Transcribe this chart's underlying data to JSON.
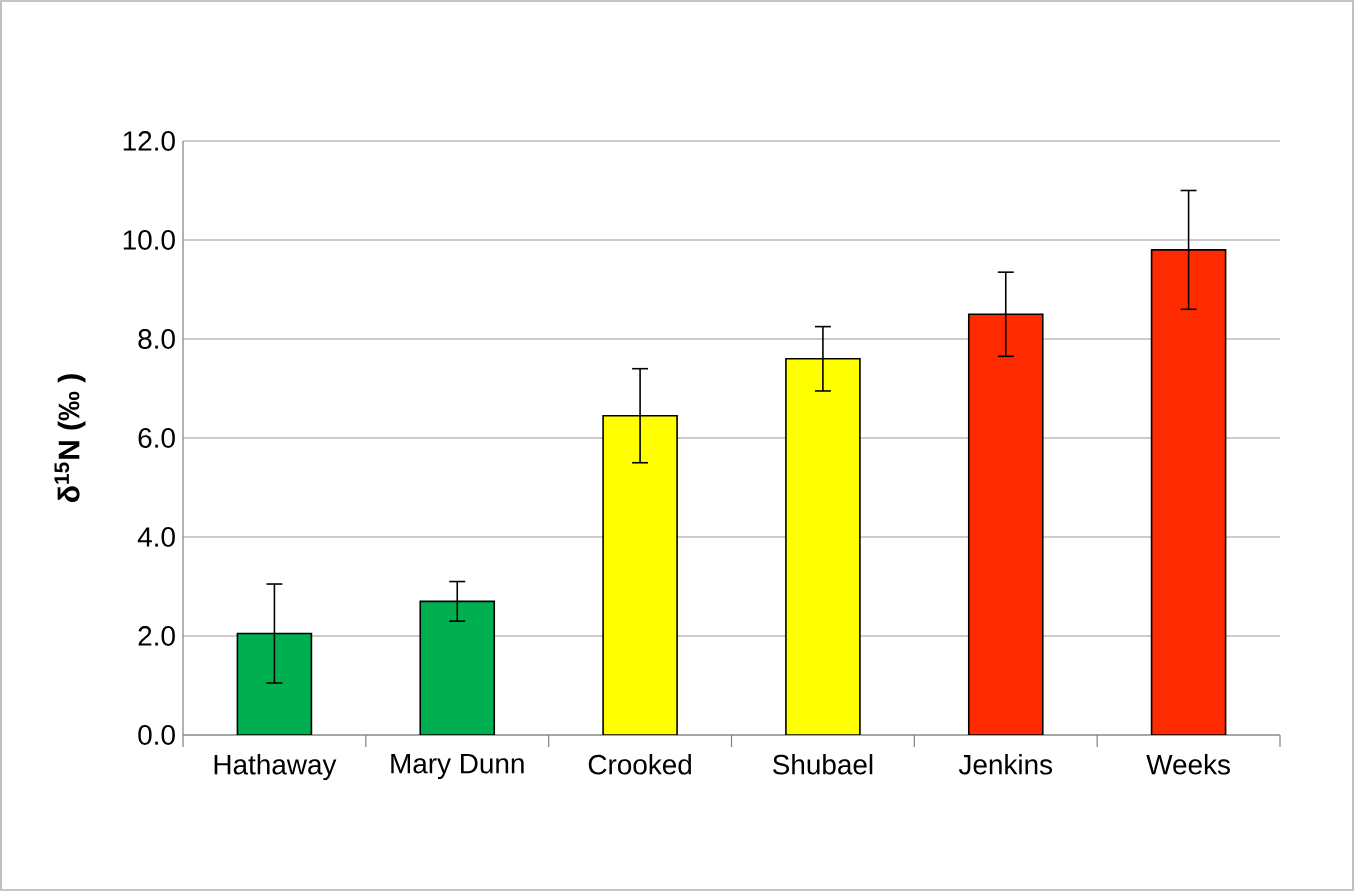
{
  "chart_data": {
    "type": "bar",
    "ylabel": "δ$^{15}$N (‰ )",
    "categories": [
      "Hathaway",
      "Mary Dunn",
      "Crooked",
      "Shubael",
      "Jenkins",
      "Weeks"
    ],
    "values": [
      2.05,
      2.7,
      6.45,
      7.6,
      8.5,
      9.8
    ],
    "errors": [
      1.0,
      0.4,
      0.95,
      0.65,
      0.85,
      1.2
    ],
    "colors": [
      "#00b050",
      "#00b050",
      "#ffff00",
      "#ffff00",
      "#ff2a00",
      "#ff2a00"
    ],
    "ylim": [
      0,
      12
    ],
    "yticks": [
      {
        "value": 0,
        "label": "0.0"
      },
      {
        "value": 2,
        "label": "2.0"
      },
      {
        "value": 4,
        "label": "4.0"
      },
      {
        "value": 6,
        "label": "6.0"
      },
      {
        "value": 8,
        "label": "8.0"
      },
      {
        "value": 10,
        "label": "10.0"
      },
      {
        "value": 12,
        "label": "12.0"
      }
    ],
    "grid": "y"
  }
}
